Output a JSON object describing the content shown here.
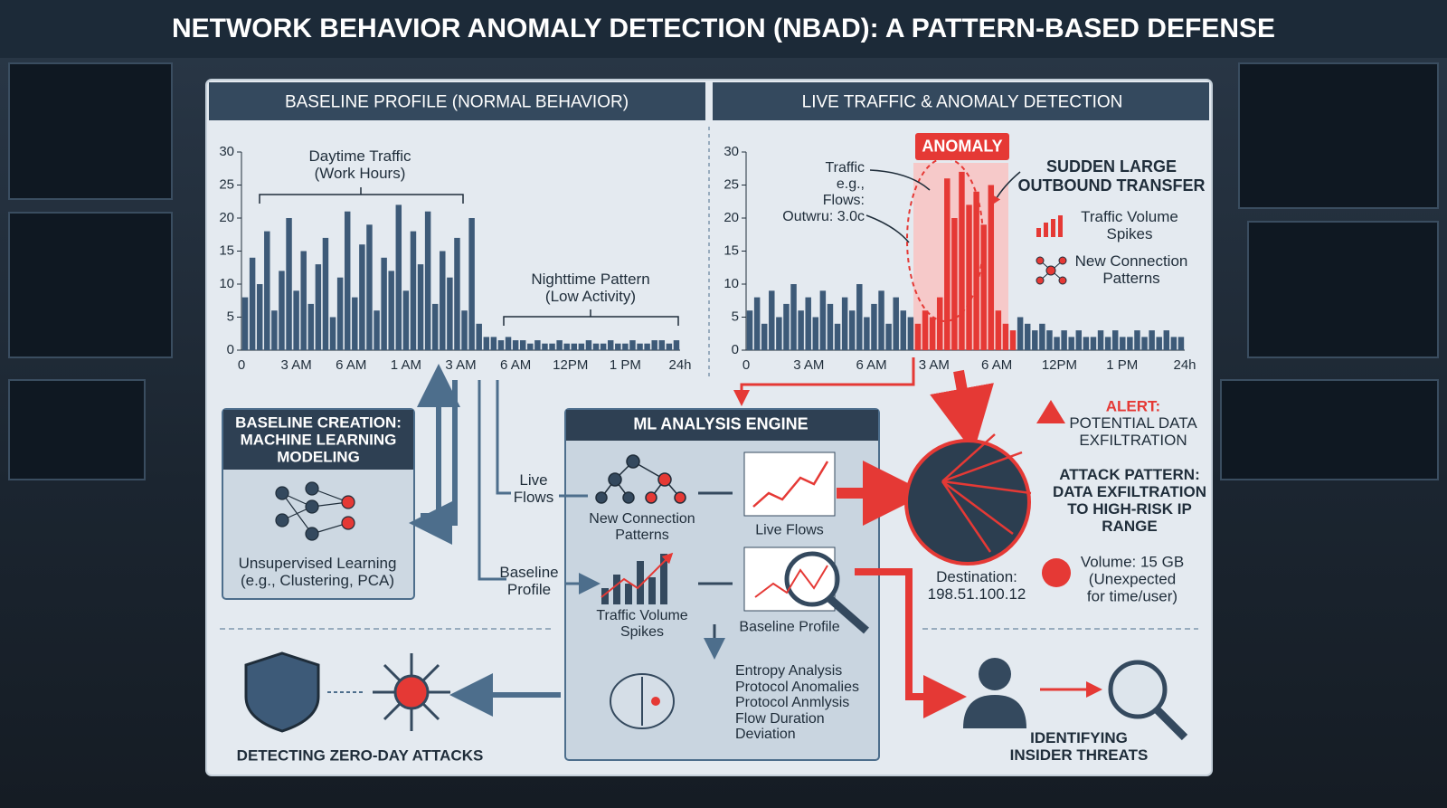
{
  "header": {
    "title": "NETWORK BEHAVIOR ANOMALY DETECTION (NBAD): A PATTERN-BASED DEFENSE"
  },
  "baseline": {
    "title": "BASELINE PROFILE (NORMAL BEHAVIOR)",
    "daytime": [
      "Daytime Traffic",
      "(Work Hours)"
    ],
    "nighttime": [
      "Nighttime Pattern",
      "(Low Activity)"
    ],
    "chart": {
      "type": "bar",
      "color": "#3d5a78",
      "ylim": [
        0,
        30
      ],
      "yticks": [
        0,
        5,
        10,
        15,
        20,
        25,
        30
      ],
      "xticks": [
        "0",
        "3 AM",
        "6 AM",
        "1 AM",
        "3 AM",
        "6 AM",
        "12PM",
        "1 PM",
        "24h"
      ],
      "values": [
        8,
        14,
        10,
        18,
        6,
        12,
        20,
        9,
        15,
        7,
        13,
        17,
        5,
        11,
        21,
        8,
        16,
        19,
        6,
        14,
        12,
        22,
        9,
        18,
        13,
        21,
        7,
        15,
        11,
        17,
        6,
        20,
        4,
        2,
        2,
        1.5,
        2,
        1.5,
        1.5,
        1,
        1.5,
        1,
        1,
        1.5,
        1,
        1,
        1,
        1.5,
        1,
        1,
        1.5,
        1,
        1,
        1.5,
        1,
        1,
        1.5,
        1.5,
        1,
        1.5
      ]
    }
  },
  "live": {
    "title": "LIVE TRAFFIC & ANOMALY DETECTION",
    "anomaly": "ANOMALY",
    "sudden": [
      "SUDDEN LARGE",
      "OUTBOUND TRANSFER"
    ],
    "traffic_note": [
      "Traffic",
      "e.g.,",
      "Flows:",
      "Outwru: 3.0c"
    ],
    "volume_spikes": [
      "Traffic Volume",
      "Spikes"
    ],
    "new_connections": [
      "New Connection",
      "Patterns"
    ],
    "chart": {
      "type": "bar",
      "ylim": [
        0,
        30
      ],
      "yticks": [
        0,
        5,
        10,
        15,
        20,
        25,
        30
      ],
      "xticks": [
        "0",
        "3 AM",
        "6 AM",
        "3 AM",
        "6 AM",
        "12PM",
        "1 PM",
        "24h"
      ],
      "series": [
        {
          "color": "#3d5a78",
          "values": [
            6,
            8,
            4,
            9,
            5,
            7,
            10,
            6,
            8,
            5,
            9,
            7,
            4,
            8,
            6,
            10,
            5,
            7,
            9,
            4,
            8,
            6,
            5,
            null,
            null,
            null,
            null,
            null,
            null,
            null,
            null,
            null,
            null,
            null,
            null,
            null,
            null,
            5,
            4,
            3,
            4,
            3,
            2,
            3,
            2,
            3,
            2,
            2,
            3,
            2,
            3,
            2,
            2,
            3,
            2,
            3,
            2,
            3,
            2,
            2
          ]
        },
        {
          "color": "#e53935",
          "values": [
            null,
            null,
            null,
            null,
            null,
            null,
            null,
            null,
            null,
            null,
            null,
            null,
            null,
            null,
            null,
            null,
            null,
            null,
            null,
            null,
            null,
            null,
            null,
            4,
            6,
            5,
            8,
            26,
            20,
            27,
            22,
            24,
            19,
            25,
            6,
            4,
            3,
            null,
            null,
            null,
            null,
            null,
            null,
            null,
            null,
            null,
            null,
            null,
            null,
            null,
            null,
            null,
            null,
            null,
            null,
            null,
            null,
            null,
            null,
            null
          ]
        }
      ]
    }
  },
  "baseline_creation": {
    "title": [
      "BASELINE CREATION:",
      "MACHINE LEARNING",
      "MODELING"
    ],
    "method": [
      "Unsupervised Learning",
      "(e.g., Clustering, PCA)"
    ]
  },
  "ml_engine": {
    "title": "ML ANALYSIS ENGINE",
    "live_flows_in": [
      "Live",
      "Flows"
    ],
    "baseline_in": [
      "Baseline",
      "Profile"
    ],
    "new_connections": [
      "New Connection",
      "Patterns"
    ],
    "live_flows": "Live Flows",
    "volume_spikes": [
      "Traffic Volume",
      "Spikes"
    ],
    "baseline_profile": "Baseline Profile",
    "techniques": [
      "Entropy Analysis",
      "Protocol Anomalies",
      "Protocol Anmlysis",
      "Flow Duration",
      "Deviation"
    ]
  },
  "alert": {
    "label": "ALERT:",
    "text": [
      "POTENTIAL DATA",
      "EXFILTRATION"
    ],
    "attack": [
      "ATTACK PATTERN:",
      "DATA EXFILTRATION",
      "TO HIGH-RISK IP",
      "RANGE"
    ],
    "destination": [
      "Destination:",
      "198.51.100.12"
    ],
    "volume": [
      "Volume: 15 GB",
      "(Unexpected",
      "for time/user)"
    ]
  },
  "zero_day": "DETECTING ZERO-DAY ATTACKS",
  "insider": [
    "IDENTIFYING",
    "INSIDER THREATS"
  ]
}
